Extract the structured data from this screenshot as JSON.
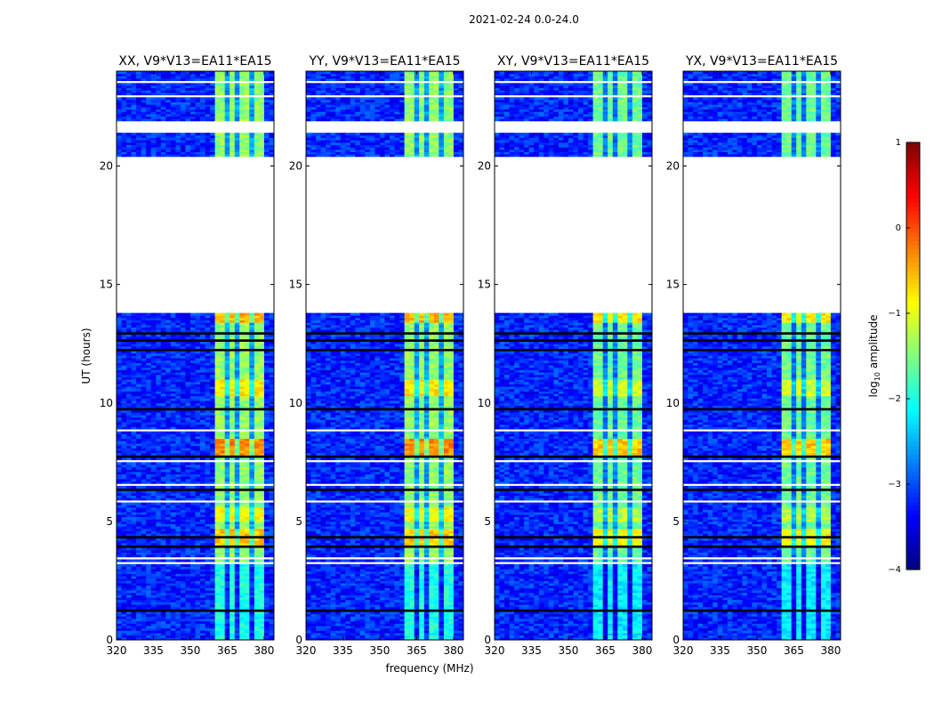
{
  "chart_data": {
    "type": "heatmap",
    "title": "2021-02-24 0.0-24.0",
    "xlabel": "frequency (MHz)",
    "ylabel": "UT (hours)",
    "xlim": [
      320,
      384
    ],
    "ylim": [
      0,
      24
    ],
    "xticks": [
      "320",
      "335",
      "350",
      "365",
      "380"
    ],
    "xtick_values": [
      320,
      335,
      350,
      365,
      380
    ],
    "yticks": [
      "0",
      "5",
      "10",
      "15",
      "20"
    ],
    "ytick_values": [
      0,
      5,
      10,
      15,
      20
    ],
    "panels": [
      {
        "title": "XX, V9*V13=EA11*EA15",
        "band_start": 360.5
      },
      {
        "title": "YY, V9*V13=EA11*EA15",
        "band_start": 360.5
      },
      {
        "title": "XY, V9*V13=EA11*EA15",
        "band_start": 360.5
      },
      {
        "title": "YX, V9*V13=EA11*EA15",
        "band_start": 360.5
      }
    ],
    "band_end": 379.5,
    "channel_gaps": [
      364.8,
      369.8,
      374.8
    ],
    "background_level": -3.2,
    "band_level": -1.4,
    "enhanced_intervals": [
      [
        7.8,
        8.5,
        -0.3
      ],
      [
        3.9,
        4.7,
        -0.6
      ],
      [
        10.3,
        11.0,
        -0.8
      ],
      [
        13.4,
        13.8,
        -0.5
      ],
      [
        5.0,
        5.6,
        -0.9
      ]
    ],
    "flagged_white": [
      [
        13.8,
        20.45
      ],
      [
        21.45,
        21.9
      ],
      [
        3.25,
        3.35
      ],
      [
        3.45,
        3.55
      ],
      [
        5.75,
        5.85
      ],
      [
        6.5,
        6.55
      ],
      [
        7.15,
        7.2
      ],
      [
        7.5,
        7.55
      ],
      [
        8.55,
        8.62
      ],
      [
        8.78,
        8.85
      ],
      [
        9.55,
        9.6
      ],
      [
        11.85,
        11.9
      ],
      [
        12.45,
        12.5
      ],
      [
        13.25,
        13.32
      ],
      [
        22.5,
        22.55
      ],
      [
        22.95,
        23.0
      ],
      [
        23.55,
        23.6
      ]
    ],
    "flagged_black": [
      [
        1.25,
        1.35
      ],
      [
        3.95,
        4.0
      ],
      [
        4.35,
        4.4
      ],
      [
        4.95,
        5.0
      ],
      [
        6.05,
        6.1
      ],
      [
        6.3,
        6.35
      ],
      [
        7.65,
        7.75
      ],
      [
        9.7,
        9.75
      ],
      [
        11.05,
        11.12
      ],
      [
        11.35,
        11.4
      ],
      [
        12.2,
        12.25
      ],
      [
        12.4,
        12.43
      ],
      [
        12.6,
        12.65
      ],
      [
        12.75,
        12.8
      ],
      [
        12.9,
        12.95
      ],
      [
        13.05,
        13.1
      ],
      [
        23.2,
        23.25
      ],
      [
        23.8,
        23.85
      ]
    ],
    "colorbar": {
      "label": "log10 amplitude",
      "range": [
        -4,
        1
      ],
      "ticks": [
        "1",
        "0",
        "−1",
        "−2",
        "−3",
        "−4"
      ],
      "tick_values": [
        1,
        0,
        -1,
        -2,
        -3,
        -4
      ],
      "label_main": "log",
      "label_sub": "10",
      "label_rest": " amplitude"
    }
  }
}
